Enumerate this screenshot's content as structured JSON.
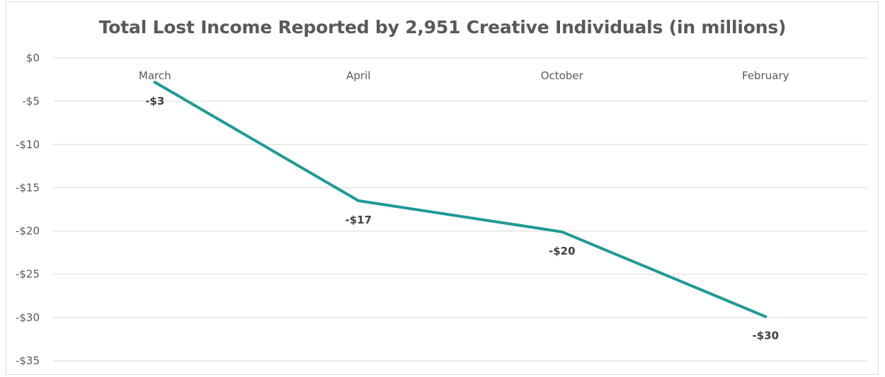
{
  "chart_data": {
    "type": "line",
    "title": "Total Lost Income Reported by 2,951 Creative Individuals (in millions)",
    "xlabel": "",
    "ylabel": "",
    "categories": [
      "March",
      "April",
      "October",
      "February"
    ],
    "series": [
      {
        "values": [
          -2.8,
          -16.5,
          -20.1,
          -29.9
        ],
        "data_labels": [
          "-$3",
          "-$17",
          "-$20",
          "-$30"
        ],
        "color": "#1f9a96"
      }
    ],
    "y_ticks": [
      {
        "value": 0,
        "label": "$0"
      },
      {
        "value": -5,
        "label": "-$5"
      },
      {
        "value": -10,
        "label": "-$10"
      },
      {
        "value": -15,
        "label": "-$15"
      },
      {
        "value": -20,
        "label": "-$20"
      },
      {
        "value": -25,
        "label": "-$25"
      },
      {
        "value": -30,
        "label": "-$30"
      },
      {
        "value": -35,
        "label": "-$35"
      }
    ],
    "ylim": [
      -35,
      0
    ],
    "category_axis_position": "top",
    "grid": true,
    "legend": "none"
  }
}
